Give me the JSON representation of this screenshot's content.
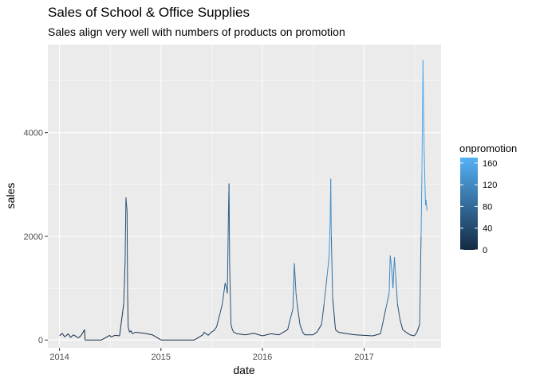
{
  "chart_data": {
    "type": "line",
    "title": "Sales of School & Office Supplies",
    "subtitle": "Sales align very well with numbers of products on promotion",
    "xlabel": "date",
    "ylabel": "sales",
    "xlim": [
      "2013-11-20",
      "2017-10-05"
    ],
    "ylim": [
      -150,
      5700
    ],
    "x_ticks": [
      "2014-01-01",
      "2015-01-01",
      "2016-01-01",
      "2017-01-01"
    ],
    "x_tick_labels": [
      "2014",
      "2015",
      "2016",
      "2017"
    ],
    "y_ticks": [
      0,
      2000,
      4000
    ],
    "y_tick_labels": [
      "0",
      "2000",
      "4000"
    ],
    "grid": true,
    "legend": {
      "title": "onpromotion",
      "position": "right",
      "type": "colorbar",
      "range": [
        0,
        170
      ],
      "ticks": [
        0,
        40,
        80,
        120,
        160
      ],
      "tick_labels": [
        "0",
        "40",
        "80",
        "120",
        "160"
      ],
      "low_color": "#132B43",
      "high_color": "#56B1F7"
    },
    "series": [
      {
        "x": [
          "2014-01-01",
          "2014-01-10",
          "2014-01-20",
          "2014-02-01",
          "2014-02-10",
          "2014-02-20",
          "2014-03-01",
          "2014-03-10",
          "2014-03-20",
          "2014-04-01",
          "2014-04-03",
          "2014-04-15",
          "2014-05-01",
          "2014-06-01",
          "2014-07-01",
          "2014-07-05",
          "2014-07-20",
          "2014-08-05",
          "2014-08-20",
          "2014-08-25",
          "2014-08-28",
          "2014-09-01",
          "2014-09-03",
          "2014-09-05",
          "2014-09-10",
          "2014-09-15",
          "2014-09-20",
          "2014-10-01",
          "2014-11-01",
          "2014-12-01",
          "2015-01-01",
          "2015-01-10",
          "2015-02-01",
          "2015-03-01",
          "2015-04-01",
          "2015-05-01",
          "2015-06-01",
          "2015-06-05",
          "2015-06-20",
          "2015-07-01",
          "2015-07-10",
          "2015-07-20",
          "2015-08-01",
          "2015-08-10",
          "2015-08-20",
          "2015-08-25",
          "2015-08-28",
          "2015-09-01",
          "2015-09-03",
          "2015-09-05",
          "2015-09-10",
          "2015-09-15",
          "2015-09-20",
          "2015-10-01",
          "2015-11-01",
          "2015-12-01",
          "2016-01-01",
          "2016-02-01",
          "2016-03-01",
          "2016-04-01",
          "2016-04-10",
          "2016-04-20",
          "2016-04-25",
          "2016-05-01",
          "2016-05-05",
          "2016-05-15",
          "2016-05-25",
          "2016-06-01",
          "2016-07-01",
          "2016-07-15",
          "2016-08-01",
          "2016-08-10",
          "2016-08-20",
          "2016-08-28",
          "2016-09-01",
          "2016-09-03",
          "2016-09-05",
          "2016-09-10",
          "2016-09-20",
          "2016-10-01",
          "2016-11-01",
          "2016-12-01",
          "2017-01-01",
          "2017-02-01",
          "2017-03-01",
          "2017-03-20",
          "2017-04-01",
          "2017-04-05",
          "2017-04-10",
          "2017-04-15",
          "2017-04-20",
          "2017-04-25",
          "2017-05-01",
          "2017-05-10",
          "2017-05-20",
          "2017-06-01",
          "2017-06-15",
          "2017-07-01",
          "2017-07-10",
          "2017-07-20",
          "2017-07-25",
          "2017-07-28",
          "2017-08-01",
          "2017-08-03",
          "2017-08-05",
          "2017-08-08",
          "2017-08-10",
          "2017-08-12",
          "2017-08-15"
        ],
        "values": [
          80,
          130,
          60,
          120,
          50,
          100,
          70,
          40,
          90,
          200,
          0,
          0,
          0,
          0,
          90,
          60,
          90,
          80,
          700,
          1500,
          2750,
          2500,
          900,
          250,
          150,
          180,
          120,
          150,
          130,
          100,
          0,
          0,
          0,
          0,
          0,
          0,
          100,
          150,
          90,
          150,
          180,
          250,
          500,
          700,
          1100,
          1000,
          900,
          2500,
          3020,
          1500,
          300,
          200,
          150,
          120,
          100,
          130,
          80,
          120,
          100,
          200,
          400,
          600,
          1480,
          900,
          700,
          300,
          150,
          100,
          100,
          150,
          300,
          700,
          1200,
          1600,
          2300,
          3110,
          2000,
          800,
          200,
          150,
          120,
          100,
          90,
          80,
          120,
          600,
          900,
          1630,
          1400,
          1000,
          1600,
          1200,
          700,
          400,
          200,
          150,
          100,
          80,
          150,
          300,
          2000,
          3200,
          5400,
          4400,
          3700,
          3000,
          2600,
          2700,
          2500
        ],
        "onpromotion": [
          0,
          0,
          0,
          0,
          0,
          0,
          0,
          0,
          0,
          0,
          0,
          0,
          0,
          0,
          0,
          0,
          0,
          0,
          20,
          40,
          60,
          50,
          30,
          15,
          10,
          10,
          10,
          8,
          8,
          8,
          0,
          0,
          0,
          0,
          0,
          0,
          10,
          15,
          12,
          15,
          20,
          30,
          40,
          55,
          70,
          60,
          55,
          60,
          70,
          60,
          40,
          25,
          20,
          15,
          12,
          12,
          10,
          12,
          12,
          25,
          50,
          70,
          100,
          80,
          60,
          30,
          15,
          10,
          10,
          12,
          30,
          80,
          110,
          130,
          140,
          140,
          110,
          50,
          15,
          12,
          10,
          10,
          10,
          10,
          12,
          80,
          110,
          130,
          120,
          100,
          130,
          110,
          70,
          40,
          20,
          15,
          12,
          10,
          15,
          30,
          120,
          150,
          165,
          155,
          145,
          140,
          135,
          140,
          130
        ]
      }
    ]
  }
}
